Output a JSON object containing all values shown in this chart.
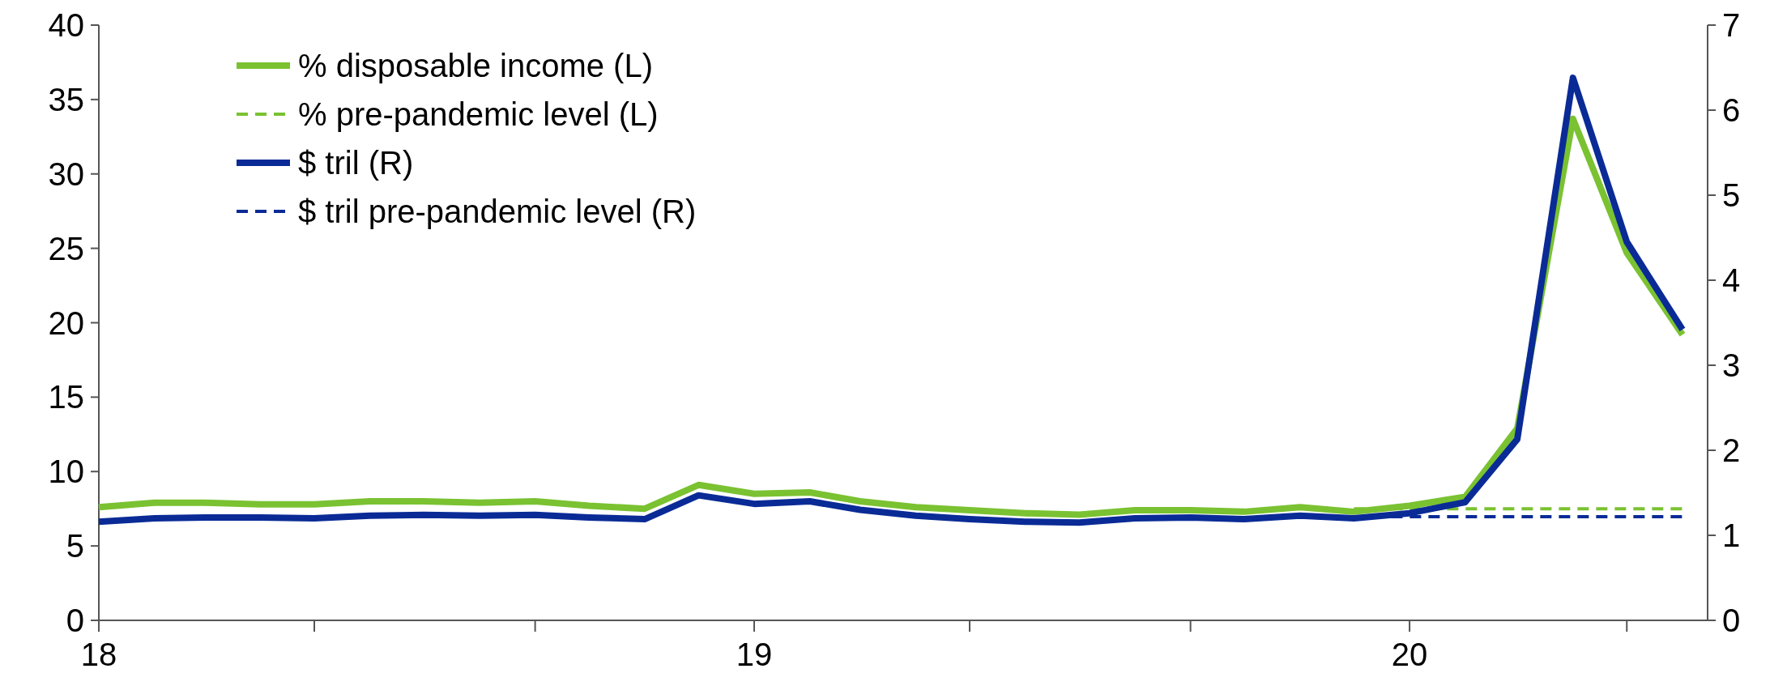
{
  "chart_data": {
    "type": "line",
    "x": [
      "2018-01",
      "2018-02",
      "2018-03",
      "2018-04",
      "2018-05",
      "2018-06",
      "2018-07",
      "2018-08",
      "2018-09",
      "2018-10",
      "2018-11",
      "2018-12",
      "2019-01",
      "2019-02",
      "2019-03",
      "2019-04",
      "2019-05",
      "2019-06",
      "2019-07",
      "2019-08",
      "2019-09",
      "2019-10",
      "2019-11",
      "2019-12",
      "2020-01",
      "2020-02",
      "2020-03",
      "2020-04",
      "2020-05",
      "2020-06"
    ],
    "series": [
      {
        "name": "% disposable income (L)",
        "color": "#7ac231",
        "values": [
          7.6,
          7.9,
          7.9,
          7.8,
          7.8,
          8.0,
          8.0,
          7.9,
          8.0,
          7.7,
          7.5,
          9.1,
          8.5,
          8.6,
          8.0,
          7.6,
          7.4,
          7.2,
          7.1,
          7.4,
          7.4,
          7.3,
          7.6,
          7.3,
          7.7,
          8.3,
          12.9,
          33.7,
          24.7,
          19.2
        ]
      },
      {
        "name": "% pre-pandemic level (L)",
        "color": "#7ac231",
        "line_style": "dashed",
        "x": [
          "2019-12",
          "2020-06"
        ],
        "values": [
          7.5,
          7.5
        ]
      },
      {
        "name": "$ tril (R)",
        "color": "#0a2b96",
        "axis": "y2",
        "values": [
          1.16,
          1.2,
          1.21,
          1.21,
          1.2,
          1.23,
          1.24,
          1.23,
          1.24,
          1.21,
          1.19,
          1.47,
          1.37,
          1.4,
          1.3,
          1.23,
          1.19,
          1.16,
          1.15,
          1.2,
          1.21,
          1.19,
          1.23,
          1.2,
          1.26,
          1.39,
          2.13,
          6.38,
          4.45,
          3.42
        ]
      },
      {
        "name": "$ tril pre-pandemic level (R)",
        "color": "#0a2b96",
        "axis": "y2",
        "line_style": "dashed",
        "x": [
          "2019-12",
          "2020-06"
        ],
        "values": [
          1.22,
          1.22
        ]
      }
    ],
    "xlim": [
      "2018-01",
      "2020-06-15"
    ],
    "xticks": [
      {
        "value": "2018-01",
        "label": "18"
      },
      {
        "value": "2018-05",
        "label": null
      },
      {
        "value": "2018-09",
        "label": null
      },
      {
        "value": "2019-01",
        "label": "19"
      },
      {
        "value": "2019-05",
        "label": null
      },
      {
        "value": "2019-09",
        "label": null
      },
      {
        "value": "2020-01",
        "label": "20"
      },
      {
        "value": "2020-05",
        "label": null
      }
    ],
    "ylim": [
      0,
      40
    ],
    "yticks": [
      0,
      5,
      10,
      15,
      20,
      25,
      30,
      35,
      40
    ],
    "y2lim": [
      0,
      7
    ],
    "y2ticks": [
      0,
      1,
      2,
      3,
      4,
      5,
      6,
      7
    ],
    "legend": "top left",
    "grid": false,
    "line_style": "solid",
    "marker": "none"
  }
}
